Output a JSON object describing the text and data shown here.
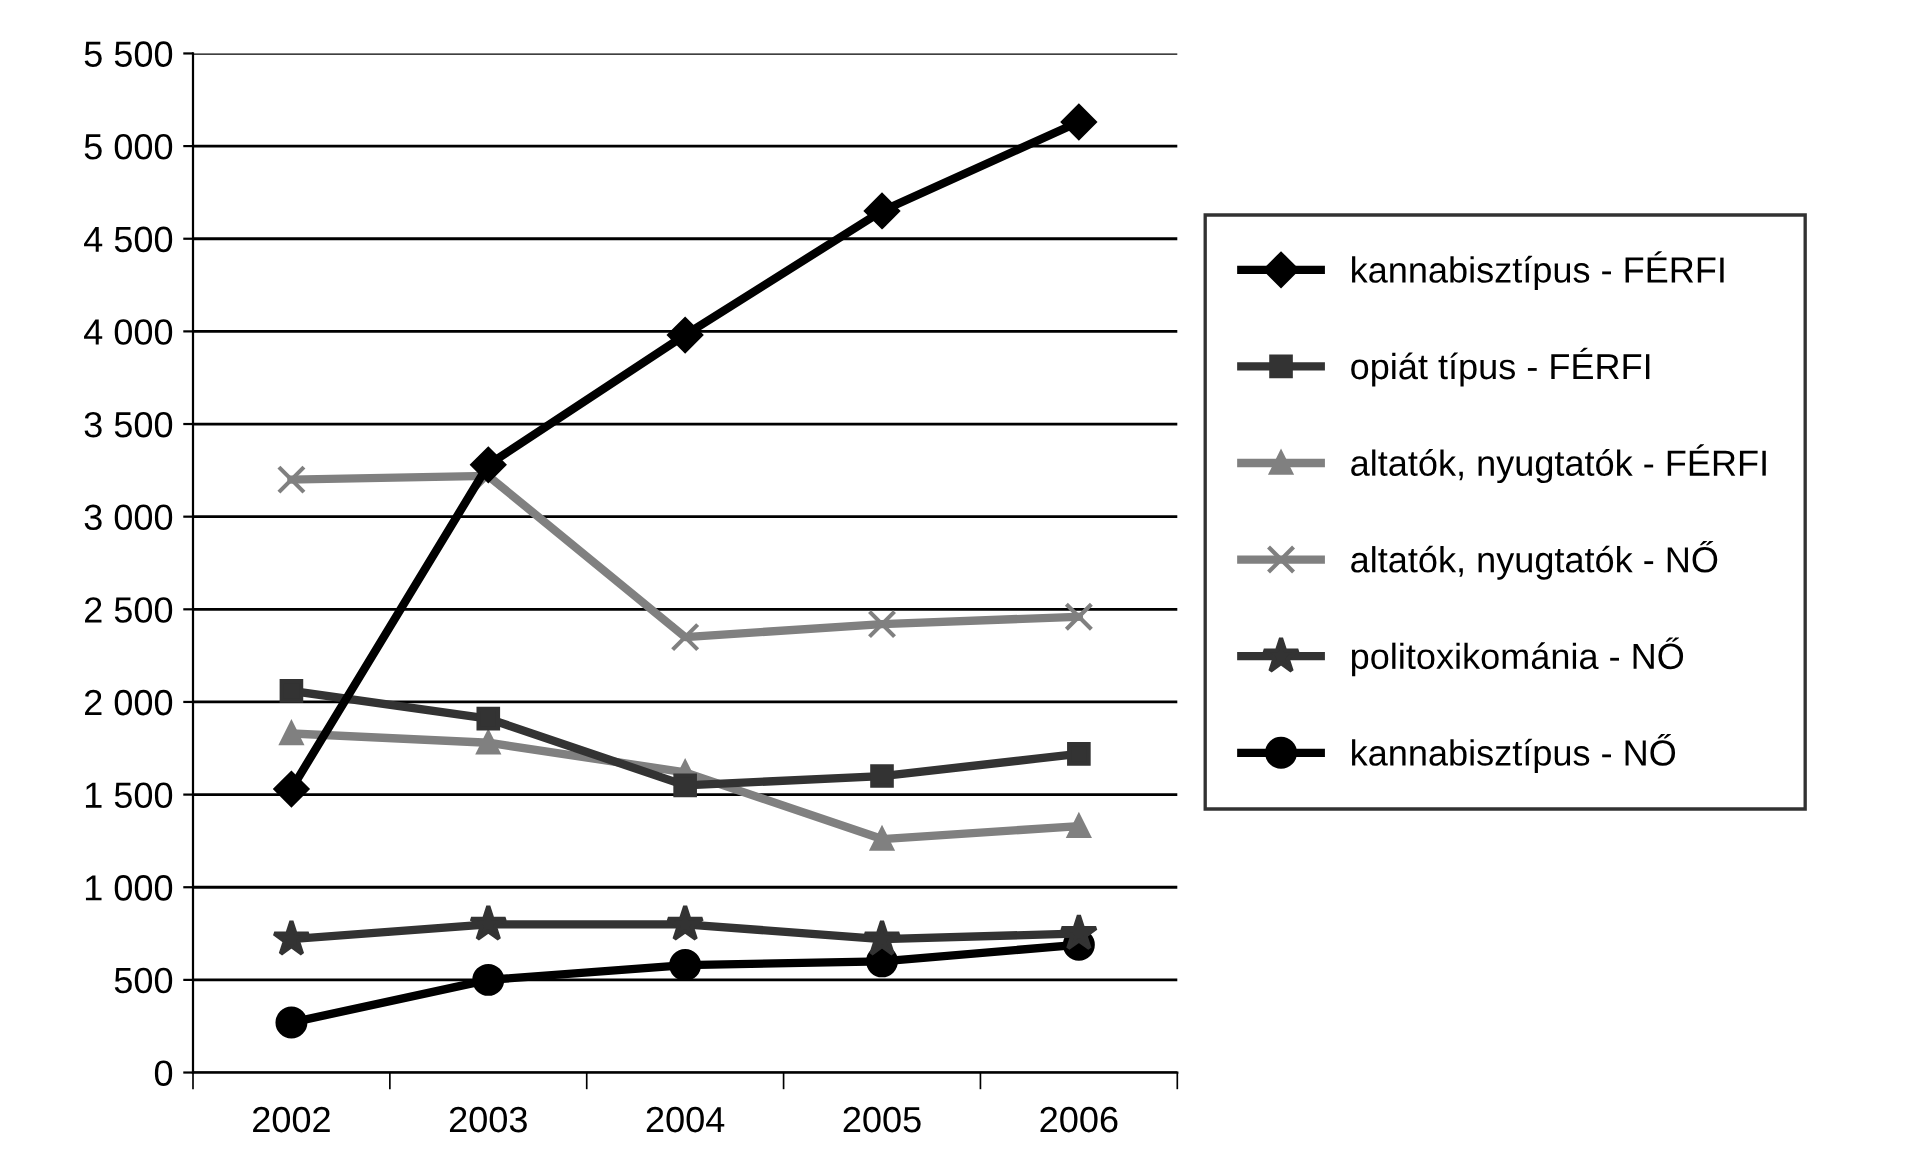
{
  "chart_data": {
    "type": "line",
    "categories": [
      "2002",
      "2003",
      "2004",
      "2005",
      "2006"
    ],
    "series": [
      {
        "name": "kannabisztípus - FÉRFI",
        "color": "#000000",
        "marker": "diamond",
        "values": [
          1530,
          3280,
          3980,
          4650,
          5130
        ]
      },
      {
        "name": "opiát típus - FÉRFI",
        "color": "#333333",
        "marker": "square",
        "values": [
          2060,
          1910,
          1550,
          1600,
          1720
        ]
      },
      {
        "name": "altatók, nyugtatók - FÉRFI",
        "color": "#808080",
        "marker": "triangle",
        "values": [
          1830,
          1780,
          1620,
          1260,
          1330
        ]
      },
      {
        "name": "altatók, nyugtatók - NŐ",
        "color": "#808080",
        "marker": "cross",
        "values": [
          3200,
          3220,
          2350,
          2420,
          2460
        ]
      },
      {
        "name": "politoxikománia - NŐ",
        "color": "#333333",
        "marker": "star",
        "values": [
          720,
          800,
          800,
          720,
          750
        ]
      },
      {
        "name": "kannabisztípus - NŐ",
        "color": "#000000",
        "marker": "circle",
        "values": [
          270,
          500,
          580,
          600,
          690
        ]
      }
    ],
    "ylim": [
      0,
      5500
    ],
    "yticks": [
      0,
      500,
      {
        "value": 1000,
        "label": "1 000"
      },
      {
        "value": 1500,
        "label": "1 500"
      },
      {
        "value": 2000,
        "label": "2 000"
      },
      {
        "value": 2500,
        "label": "2 500"
      },
      {
        "value": 3000,
        "label": "3 000"
      },
      {
        "value": 3500,
        "label": "3 500"
      },
      {
        "value": 4000,
        "label": "4 000"
      },
      {
        "value": 4500,
        "label": "4 500"
      },
      {
        "value": 5000,
        "label": "5 000"
      },
      {
        "value": 5500,
        "label": "5 500"
      }
    ],
    "grid": "y",
    "legend": "right",
    "line_style": "solid"
  }
}
